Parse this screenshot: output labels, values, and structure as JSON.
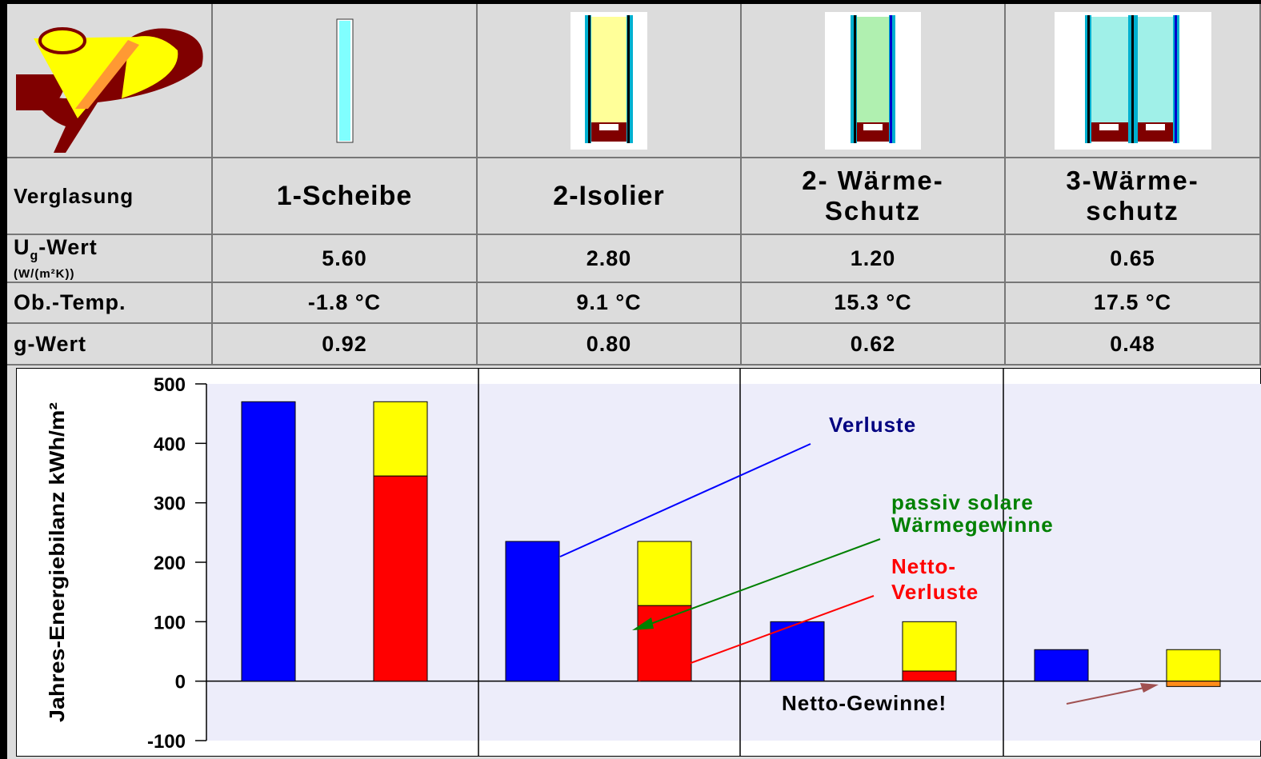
{
  "table": {
    "header_label": "Verglasung",
    "columns": [
      {
        "name": "1-Scheibe",
        "ug": "5.60",
        "temp": "-1.8 °C",
        "g": "0.92"
      },
      {
        "name_line1": "2-Isolier",
        "name_line2": "",
        "ug": "2.80",
        "temp": "9.1 °C",
        "g": "0.80"
      },
      {
        "name_line1": "2- Wärme-",
        "name_line2": "Schutz",
        "ug": "1.20",
        "temp": "15.3 °C",
        "g": "0.62"
      },
      {
        "name_line1": "3-Wärme-",
        "name_line2": "schutz",
        "ug": "0.65",
        "temp": "17.5 °C",
        "g": "0.48"
      }
    ],
    "row_ug_label": "U",
    "row_ug_sub": "g",
    "row_ug_suffix": "-Wert",
    "row_ug_unit": "(W/(m²K))",
    "row_temp_label": "Ob.-Temp.",
    "row_g_label": "g-Wert"
  },
  "colors": {
    "verluste": "#0000ff",
    "netto_verluste": "#ff0000",
    "solar": "#ffff00",
    "netto_gewinne": "#ff8c1a",
    "plot_bg": "#ededfa",
    "label_verluste": "#000080",
    "label_solar": "#008000",
    "label_netto": "#ff0000"
  },
  "chart_data": {
    "type": "bar",
    "ylabel": "Jahres-Energiebilanz kWh/m²",
    "ylim": [
      -100,
      500
    ],
    "yticks": [
      "500",
      "400",
      "300",
      "200",
      "100",
      "0",
      "-100"
    ],
    "tick_values": [
      500,
      400,
      300,
      200,
      100,
      0,
      -100
    ],
    "groups": [
      {
        "verluste": 470,
        "netto": 345,
        "solar_top": 470
      },
      {
        "verluste": 235,
        "netto": 127,
        "solar_top": 235
      },
      {
        "verluste": 100,
        "netto": 17,
        "solar_top": 100
      },
      {
        "verluste": 53,
        "netto": -9,
        "solar_top": 53
      }
    ],
    "annotations": {
      "verluste": "Verluste",
      "solar_line1": "passiv solare",
      "solar_line2": "Wärmegewinne",
      "netto_line1": "Netto-",
      "netto_line2": "Verluste",
      "gewinne": "Netto-Gewinne!"
    }
  }
}
